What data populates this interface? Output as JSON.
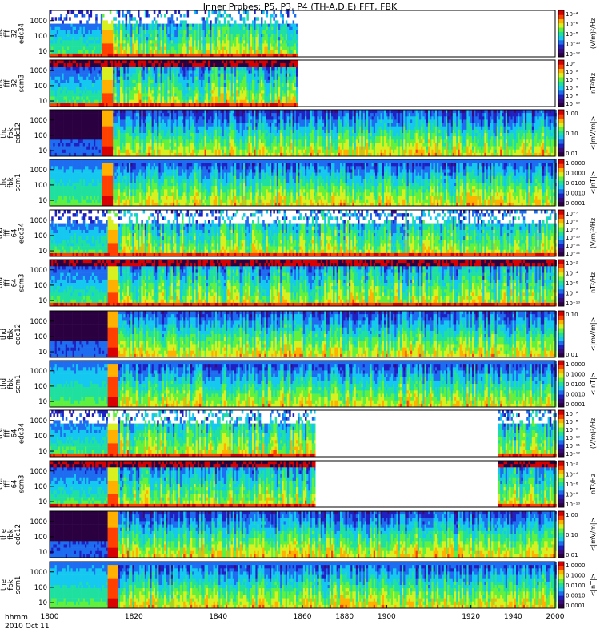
{
  "chart_data": {
    "type": "heatmap",
    "title": "Inner Probes: P5, P3, P4 (TH-A,D,E) FFT, FBK",
    "time_label": "hhmm",
    "date_label": "2010 Oct 11",
    "x_ticks": [
      "1800",
      "1820",
      "1840",
      "1860",
      "1880",
      "1900",
      "1920",
      "1940",
      "2000"
    ],
    "x_range_min_after_1800": [
      0,
      120
    ],
    "panels": [
      {
        "probe": "thc",
        "inst": "fff",
        "res": "32",
        "chan": "edc34",
        "y_ticks": [
          "1000",
          "100",
          "10"
        ],
        "c_ticks": [
          "10⁻⁴",
          "10⁻⁶",
          "10⁻⁸",
          "10⁻¹⁰",
          "10⁻¹²"
        ],
        "c_label": "(V/m)²/Hz",
        "data_end": 58.8,
        "kind": "fffe"
      },
      {
        "probe": "thc",
        "inst": "fff",
        "res": "32",
        "chan": "scm3",
        "y_ticks": [
          "1000",
          "100",
          "10"
        ],
        "c_ticks": [
          "10⁰",
          "10⁻²",
          "10⁻⁴",
          "10⁻⁶",
          "10⁻⁸",
          "10⁻¹⁰"
        ],
        "c_label": "nT²/Hz",
        "data_end": 58.8,
        "kind": "fffs"
      },
      {
        "probe": "thc",
        "inst": "fbk",
        "res": "",
        "chan": "edc12",
        "y_ticks": [
          "1000",
          "100",
          "10"
        ],
        "c_ticks": [
          "1.00",
          "0.10",
          "0.01"
        ],
        "c_label": "<|mV/m|>",
        "data_end": 120,
        "kind": "fbke"
      },
      {
        "probe": "thc",
        "inst": "fbk",
        "res": "",
        "chan": "scm1",
        "y_ticks": [
          "1000",
          "100",
          "10"
        ],
        "c_ticks": [
          "1.0000",
          "0.1000",
          "0.0100",
          "0.0010",
          "0.0001"
        ],
        "c_label": "<|nT|>",
        "data_end": 120,
        "kind": "fbks"
      },
      {
        "probe": "thd",
        "inst": "fff",
        "res": "64",
        "chan": "edc34",
        "y_ticks": [
          "1000",
          "100",
          "10"
        ],
        "c_ticks": [
          "10⁻⁷",
          "10⁻⁸",
          "10⁻⁹",
          "10⁻¹⁰",
          "10⁻¹¹",
          "10⁻¹²"
        ],
        "c_label": "(V/m)²/Hz",
        "data_end": 120,
        "kind": "fffe"
      },
      {
        "probe": "thd",
        "inst": "fff",
        "res": "64",
        "chan": "scm3",
        "y_ticks": [
          "1000",
          "100",
          "10"
        ],
        "c_ticks": [
          "10⁻²",
          "10⁻⁴",
          "10⁻⁶",
          "10⁻⁸",
          "10⁻¹⁰"
        ],
        "c_label": "nT²/Hz",
        "data_end": 120,
        "kind": "fffs"
      },
      {
        "probe": "thd",
        "inst": "fbk",
        "res": "",
        "chan": "edc12",
        "y_ticks": [
          "1000",
          "100",
          "10"
        ],
        "c_ticks": [
          "0.10",
          "0.01"
        ],
        "c_label": "<|mV/m|>",
        "data_end": 120,
        "kind": "fbke"
      },
      {
        "probe": "thd",
        "inst": "fbk",
        "res": "",
        "chan": "scm1",
        "y_ticks": [
          "1000",
          "100",
          "10"
        ],
        "c_ticks": [
          "1.0000",
          "0.1000",
          "0.0100",
          "0.0010",
          "0.0001"
        ],
        "c_label": "<|nT|>",
        "data_end": 120,
        "kind": "fbks"
      },
      {
        "probe": "the",
        "inst": "fff",
        "res": "64",
        "chan": "edc34",
        "y_ticks": [
          "1000",
          "100",
          "10"
        ],
        "c_ticks": [
          "10⁻⁷",
          "10⁻⁸",
          "10⁻⁹",
          "10⁻¹⁰",
          "10⁻¹¹",
          "10⁻¹²"
        ],
        "c_label": "(V/m)²/Hz",
        "data_end": 62.8,
        "resume": 106.5,
        "kind": "fffe"
      },
      {
        "probe": "the",
        "inst": "fff",
        "res": "64",
        "chan": "scm3",
        "y_ticks": [
          "1000",
          "100",
          "10"
        ],
        "c_ticks": [
          "10⁻²",
          "10⁻⁴",
          "10⁻⁶",
          "10⁻⁸",
          "10⁻¹⁰"
        ],
        "c_label": "nT²/Hz",
        "data_end": 62.8,
        "resume": 106.5,
        "kind": "fffs"
      },
      {
        "probe": "the",
        "inst": "fbk",
        "res": "",
        "chan": "edc12",
        "y_ticks": [
          "1000",
          "100",
          "10"
        ],
        "c_ticks": [
          "1.00",
          "0.10",
          "0.01"
        ],
        "c_label": "<|mV/m|>",
        "data_end": 120,
        "kind": "fbke"
      },
      {
        "probe": "the",
        "inst": "fbk",
        "res": "",
        "chan": "scm1",
        "y_ticks": [
          "1000",
          "100",
          "10"
        ],
        "c_ticks": [
          "1.0000",
          "0.1000",
          "0.0100",
          "0.0010",
          "0.0001"
        ],
        "c_label": "<|nT|>",
        "data_end": 120,
        "kind": "fbks"
      }
    ],
    "colorscale": [
      "#2b0040",
      "#3a0a7a",
      "#2020c0",
      "#1e6cf0",
      "#15c8f0",
      "#20e0a0",
      "#60f040",
      "#d8f020",
      "#ffb000",
      "#ff4000",
      "#d80000"
    ],
    "grid": false,
    "legend": "colorbar-right"
  }
}
